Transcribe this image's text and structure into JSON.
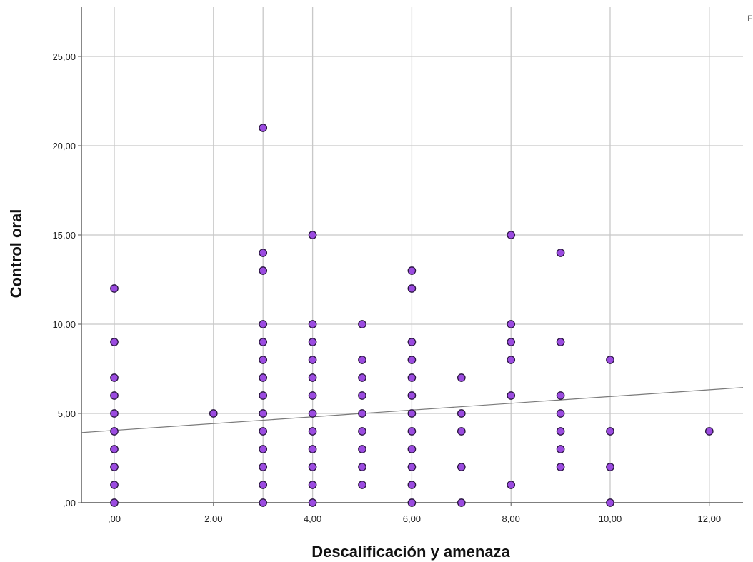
{
  "chart_data": {
    "type": "scatter",
    "title": "",
    "xlabel": "Descalificación y amenaza",
    "ylabel": "Control oral",
    "xlim": [
      -0.65,
      12.65
    ],
    "ylim": [
      0,
      27.5
    ],
    "x_ticks": [
      0,
      2,
      4,
      6,
      8,
      10,
      12
    ],
    "x_tick_labels": [
      ",00",
      "2,00",
      "4,00",
      "6,00",
      "8,00",
      "10,00",
      "12,00"
    ],
    "x_grid": [
      0,
      2,
      3,
      4,
      6,
      8,
      10,
      12
    ],
    "y_ticks": [
      0,
      5,
      10,
      15,
      20,
      25
    ],
    "y_tick_labels": [
      ",00",
      "5,00",
      "10,00",
      "15,00",
      "20,00",
      "25,00"
    ],
    "grid": true,
    "corner_label": "F",
    "point_color": "#9b4be0",
    "point_edge": "#2a1640",
    "fit_line": {
      "type": "linear",
      "intercept": 4.05,
      "slope": 0.19,
      "color": "#7a7a7a"
    },
    "points": [
      [
        0,
        0
      ],
      [
        0,
        1
      ],
      [
        0,
        2
      ],
      [
        0,
        3
      ],
      [
        0,
        4
      ],
      [
        0,
        5
      ],
      [
        0,
        6
      ],
      [
        0,
        7
      ],
      [
        0,
        9
      ],
      [
        0,
        12
      ],
      [
        2,
        5
      ],
      [
        3,
        0
      ],
      [
        3,
        1
      ],
      [
        3,
        2
      ],
      [
        3,
        3
      ],
      [
        3,
        4
      ],
      [
        3,
        5
      ],
      [
        3,
        6
      ],
      [
        3,
        7
      ],
      [
        3,
        8
      ],
      [
        3,
        9
      ],
      [
        3,
        10
      ],
      [
        3,
        13
      ],
      [
        3,
        14
      ],
      [
        3,
        21
      ],
      [
        4,
        0
      ],
      [
        4,
        1
      ],
      [
        4,
        2
      ],
      [
        4,
        3
      ],
      [
        4,
        4
      ],
      [
        4,
        5
      ],
      [
        4,
        6
      ],
      [
        4,
        7
      ],
      [
        4,
        8
      ],
      [
        4,
        9
      ],
      [
        4,
        10
      ],
      [
        4,
        15
      ],
      [
        5,
        1
      ],
      [
        5,
        2
      ],
      [
        5,
        3
      ],
      [
        5,
        4
      ],
      [
        5,
        5
      ],
      [
        5,
        6
      ],
      [
        5,
        7
      ],
      [
        5,
        8
      ],
      [
        5,
        10
      ],
      [
        6,
        0
      ],
      [
        6,
        1
      ],
      [
        6,
        2
      ],
      [
        6,
        3
      ],
      [
        6,
        4
      ],
      [
        6,
        5
      ],
      [
        6,
        6
      ],
      [
        6,
        7
      ],
      [
        6,
        8
      ],
      [
        6,
        9
      ],
      [
        6,
        12
      ],
      [
        6,
        13
      ],
      [
        7,
        0
      ],
      [
        7,
        2
      ],
      [
        7,
        4
      ],
      [
        7,
        5
      ],
      [
        7,
        7
      ],
      [
        8,
        1
      ],
      [
        8,
        6
      ],
      [
        8,
        8
      ],
      [
        8,
        9
      ],
      [
        8,
        10
      ],
      [
        8,
        15
      ],
      [
        9,
        2
      ],
      [
        9,
        3
      ],
      [
        9,
        4
      ],
      [
        9,
        5
      ],
      [
        9,
        6
      ],
      [
        9,
        9
      ],
      [
        9,
        14
      ],
      [
        10,
        0
      ],
      [
        10,
        2
      ],
      [
        10,
        4
      ],
      [
        10,
        8
      ],
      [
        12,
        4
      ]
    ]
  }
}
